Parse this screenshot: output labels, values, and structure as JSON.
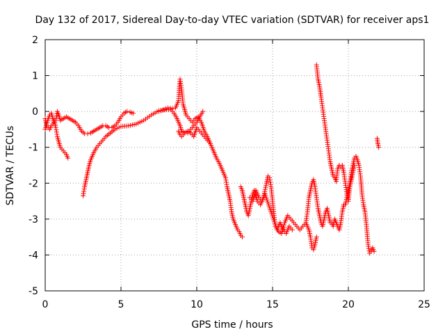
{
  "chart_data": {
    "type": "scatter",
    "title": "Day 132 of 2017, Sidereal Day-to-day VTEC variation (SDTVAR) for receiver aps1",
    "xlabel": "GPS time / hours",
    "ylabel": "SDTVAR / TECUs",
    "xlim": [
      0,
      25
    ],
    "ylim": [
      -5,
      2
    ],
    "x_ticks": [
      "0",
      "5",
      "10",
      "15",
      "20",
      "25"
    ],
    "y_ticks": [
      "2",
      "1",
      "0",
      "-1",
      "-2",
      "-3",
      "-4",
      "-5"
    ],
    "grid": true,
    "marker": "plus",
    "colors": {
      "series": "#ff0000",
      "grid": "#a0a0a0",
      "axes": "#000000"
    },
    "series": [
      {
        "segments": [
          [
            [
              0.0,
              -0.5
            ],
            [
              0.1,
              -0.35
            ],
            [
              0.2,
              -0.2
            ],
            [
              0.3,
              -0.1
            ],
            [
              0.4,
              -0.05
            ],
            [
              0.5,
              -0.2
            ],
            [
              0.6,
              -0.3
            ],
            [
              0.7,
              -0.25
            ],
            [
              0.8,
              0.0
            ],
            [
              0.9,
              -0.1
            ],
            [
              1.0,
              -0.25
            ],
            [
              1.2,
              -0.2
            ],
            [
              1.4,
              -0.15
            ],
            [
              1.6,
              -0.2
            ],
            [
              1.8,
              -0.25
            ],
            [
              2.0,
              -0.3
            ],
            [
              2.2,
              -0.4
            ],
            [
              2.4,
              -0.55
            ],
            [
              2.6,
              -0.62
            ],
            [
              2.8,
              -0.62
            ],
            [
              3.0,
              -0.6
            ],
            [
              3.2,
              -0.55
            ],
            [
              3.4,
              -0.5
            ],
            [
              3.6,
              -0.45
            ],
            [
              3.8,
              -0.4
            ],
            [
              4.0,
              -0.4
            ],
            [
              4.2,
              -0.45
            ],
            [
              4.4,
              -0.45
            ],
            [
              4.6,
              -0.4
            ],
            [
              4.8,
              -0.3
            ],
            [
              5.0,
              -0.15
            ],
            [
              5.2,
              -0.05
            ],
            [
              5.4,
              0.0
            ],
            [
              5.6,
              -0.02
            ],
            [
              5.8,
              -0.05
            ]
          ],
          [
            [
              0.0,
              -0.2
            ],
            [
              0.1,
              -0.4
            ],
            [
              0.2,
              -0.45
            ],
            [
              0.3,
              -0.5
            ],
            [
              0.4,
              -0.4
            ],
            [
              0.5,
              -0.35
            ],
            [
              0.6,
              -0.25
            ],
            [
              0.7,
              -0.45
            ],
            [
              0.8,
              -0.7
            ],
            [
              0.9,
              -0.85
            ],
            [
              1.0,
              -1.0
            ],
            [
              1.1,
              -1.05
            ],
            [
              1.2,
              -1.1
            ],
            [
              1.3,
              -1.15
            ],
            [
              1.4,
              -1.2
            ],
            [
              1.5,
              -1.3
            ]
          ],
          [
            [
              2.5,
              -2.35
            ],
            [
              2.6,
              -2.1
            ],
            [
              2.7,
              -1.9
            ],
            [
              2.8,
              -1.7
            ],
            [
              2.9,
              -1.5
            ],
            [
              3.0,
              -1.35
            ],
            [
              3.2,
              -1.15
            ],
            [
              3.4,
              -1.0
            ],
            [
              3.6,
              -0.9
            ],
            [
              3.8,
              -0.8
            ],
            [
              4.0,
              -0.7
            ],
            [
              4.3,
              -0.6
            ],
            [
              4.6,
              -0.5
            ],
            [
              5.0,
              -0.42
            ],
            [
              5.5,
              -0.4
            ],
            [
              6.0,
              -0.35
            ],
            [
              6.5,
              -0.25
            ],
            [
              7.0,
              -0.1
            ],
            [
              7.5,
              0.02
            ],
            [
              8.0,
              0.05
            ],
            [
              8.3,
              0.05
            ],
            [
              8.5,
              -0.05
            ],
            [
              8.7,
              -0.2
            ],
            [
              8.9,
              -0.4
            ],
            [
              9.0,
              -0.55
            ],
            [
              9.2,
              -0.6
            ],
            [
              9.4,
              -0.6
            ],
            [
              9.6,
              -0.5
            ],
            [
              9.8,
              -0.4
            ],
            [
              10.0,
              -0.3
            ],
            [
              10.2,
              -0.15
            ],
            [
              10.4,
              0.0
            ]
          ],
          [
            [
              7.5,
              0.0
            ],
            [
              7.8,
              0.05
            ],
            [
              8.1,
              0.1
            ],
            [
              8.4,
              0.08
            ],
            [
              8.6,
              0.1
            ],
            [
              8.8,
              0.3
            ],
            [
              8.85,
              0.7
            ],
            [
              8.9,
              0.9
            ],
            [
              9.0,
              0.6
            ],
            [
              9.1,
              0.2
            ],
            [
              9.2,
              0.05
            ],
            [
              9.3,
              -0.1
            ],
            [
              9.5,
              -0.2
            ],
            [
              9.7,
              -0.3
            ],
            [
              9.9,
              -0.2
            ],
            [
              10.1,
              -0.15
            ],
            [
              10.3,
              -0.3
            ],
            [
              10.5,
              -0.55
            ],
            [
              10.7,
              -0.7
            ],
            [
              10.9,
              -0.9
            ],
            [
              11.1,
              -1.1
            ],
            [
              11.3,
              -1.3
            ],
            [
              11.5,
              -1.45
            ],
            [
              11.7,
              -1.65
            ],
            [
              11.9,
              -1.85
            ],
            [
              12.0,
              -2.1
            ],
            [
              12.1,
              -2.3
            ],
            [
              12.2,
              -2.5
            ],
            [
              12.3,
              -2.8
            ],
            [
              12.4,
              -3.0
            ],
            [
              12.5,
              -3.1
            ],
            [
              12.6,
              -3.2
            ],
            [
              12.7,
              -3.3
            ],
            [
              12.8,
              -3.35
            ],
            [
              12.9,
              -3.45
            ],
            [
              13.0,
              -3.5
            ]
          ],
          [
            [
              8.8,
              -0.55
            ],
            [
              8.9,
              -0.65
            ],
            [
              9.0,
              -0.7
            ],
            [
              9.2,
              -0.6
            ],
            [
              9.4,
              -0.55
            ],
            [
              9.6,
              -0.6
            ],
            [
              9.8,
              -0.7
            ],
            [
              10.0,
              -0.45
            ],
            [
              10.2,
              -0.55
            ],
            [
              10.4,
              -0.65
            ],
            [
              10.6,
              -0.75
            ],
            [
              10.8,
              -0.85
            ]
          ],
          [
            [
              12.9,
              -2.1
            ],
            [
              13.0,
              -2.2
            ],
            [
              13.1,
              -2.4
            ],
            [
              13.2,
              -2.6
            ],
            [
              13.3,
              -2.8
            ],
            [
              13.4,
              -2.9
            ],
            [
              13.5,
              -2.7
            ],
            [
              13.6,
              -2.5
            ],
            [
              13.7,
              -2.3
            ],
            [
              13.8,
              -2.2
            ],
            [
              13.9,
              -2.35
            ],
            [
              14.0,
              -2.5
            ],
            [
              14.2,
              -2.6
            ],
            [
              14.4,
              -2.4
            ],
            [
              14.6,
              -2.0
            ],
            [
              14.7,
              -1.8
            ],
            [
              14.8,
              -1.85
            ],
            [
              14.9,
              -2.1
            ],
            [
              15.0,
              -2.5
            ],
            [
              15.1,
              -2.9
            ],
            [
              15.2,
              -3.2
            ],
            [
              15.4,
              -3.35
            ],
            [
              15.6,
              -3.4
            ],
            [
              15.8,
              -3.1
            ],
            [
              16.0,
              -2.9
            ],
            [
              16.2,
              -3.0
            ],
            [
              16.4,
              -3.1
            ],
            [
              16.6,
              -3.2
            ],
            [
              16.8,
              -3.3
            ],
            [
              17.0,
              -3.2
            ],
            [
              17.2,
              -3.1
            ],
            [
              17.4,
              -3.3
            ],
            [
              17.5,
              -3.5
            ],
            [
              17.6,
              -3.8
            ],
            [
              17.7,
              -3.85
            ],
            [
              17.8,
              -3.7
            ],
            [
              17.9,
              -3.5
            ]
          ],
          [
            [
              13.5,
              -2.4
            ],
            [
              13.7,
              -2.5
            ],
            [
              13.9,
              -2.2
            ],
            [
              14.1,
              -2.4
            ],
            [
              14.3,
              -2.5
            ],
            [
              14.5,
              -2.3
            ],
            [
              15.3,
              -3.3
            ],
            [
              15.5,
              -3.1
            ],
            [
              15.7,
              -3.3
            ],
            [
              15.9,
              -3.4
            ],
            [
              16.1,
              -3.2
            ],
            [
              16.3,
              -3.3
            ]
          ],
          [
            [
              17.2,
              -3.1
            ],
            [
              17.3,
              -2.8
            ],
            [
              17.4,
              -2.4
            ],
            [
              17.5,
              -2.2
            ],
            [
              17.6,
              -2.0
            ],
            [
              17.7,
              -1.9
            ],
            [
              17.8,
              -2.1
            ],
            [
              17.9,
              -2.4
            ],
            [
              18.0,
              -2.7
            ],
            [
              18.1,
              -2.9
            ],
            [
              18.2,
              -3.1
            ],
            [
              18.3,
              -3.2
            ],
            [
              18.4,
              -3.0
            ],
            [
              18.5,
              -2.8
            ],
            [
              18.6,
              -2.7
            ],
            [
              18.7,
              -2.9
            ],
            [
              18.8,
              -3.1
            ],
            [
              18.9,
              -3.1
            ],
            [
              19.0,
              -3.2
            ],
            [
              19.1,
              -3.0
            ],
            [
              19.2,
              -3.1
            ],
            [
              19.3,
              -3.2
            ],
            [
              19.4,
              -3.3
            ],
            [
              19.5,
              -3.1
            ],
            [
              19.6,
              -2.8
            ],
            [
              19.7,
              -2.6
            ],
            [
              19.8,
              -2.6
            ],
            [
              19.9,
              -2.4
            ],
            [
              20.0,
              -2.2
            ],
            [
              20.1,
              -2.0
            ],
            [
              20.2,
              -1.7
            ],
            [
              20.3,
              -1.5
            ],
            [
              20.4,
              -1.3
            ],
            [
              20.5,
              -1.25
            ],
            [
              20.6,
              -1.35
            ],
            [
              20.7,
              -1.5
            ],
            [
              20.8,
              -1.8
            ],
            [
              20.9,
              -2.3
            ],
            [
              21.0,
              -2.6
            ],
            [
              21.1,
              -2.8
            ],
            [
              21.2,
              -3.2
            ],
            [
              21.3,
              -3.7
            ],
            [
              21.4,
              -3.95
            ],
            [
              21.5,
              -3.9
            ],
            [
              21.6,
              -3.8
            ],
            [
              21.7,
              -3.9
            ]
          ],
          [
            [
              17.9,
              1.3
            ],
            [
              18.0,
              0.9
            ],
            [
              18.1,
              0.7
            ],
            [
              18.15,
              0.55
            ],
            [
              18.2,
              0.4
            ],
            [
              18.3,
              0.1
            ],
            [
              18.4,
              -0.2
            ],
            [
              18.5,
              -0.5
            ],
            [
              18.6,
              -0.8
            ],
            [
              18.7,
              -1.1
            ],
            [
              18.8,
              -1.4
            ],
            [
              18.9,
              -1.6
            ],
            [
              19.0,
              -1.8
            ],
            [
              19.1,
              -1.85
            ],
            [
              19.2,
              -1.95
            ],
            [
              19.3,
              -1.6
            ],
            [
              19.4,
              -1.5
            ],
            [
              19.5,
              -1.55
            ],
            [
              19.6,
              -1.5
            ],
            [
              19.7,
              -1.7
            ],
            [
              19.8,
              -2.0
            ],
            [
              19.9,
              -2.3
            ],
            [
              20.0,
              -2.5
            ],
            [
              20.1,
              -2.1
            ],
            [
              20.2,
              -1.9
            ],
            [
              20.3,
              -1.7
            ],
            [
              20.4,
              -1.5
            ]
          ],
          [
            [
              21.9,
              -0.75
            ],
            [
              21.95,
              -0.9
            ],
            [
              22.0,
              -1.0
            ]
          ]
        ]
      }
    ]
  }
}
